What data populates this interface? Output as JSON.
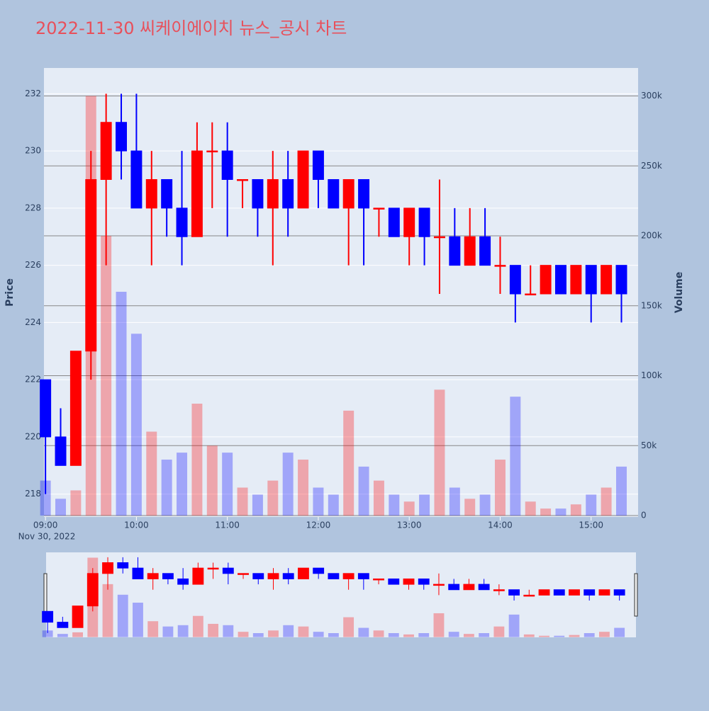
{
  "chart_data": {
    "type": "candlestick",
    "title": "2022-11-30 씨케이에이치 뉴스_공시 차트",
    "y_label": "Price",
    "y2_label": "Volume",
    "x": [
      "09:00",
      "09:10",
      "09:20",
      "09:30",
      "09:40",
      "09:50",
      "10:00",
      "10:10",
      "10:20",
      "10:30",
      "10:40",
      "10:50",
      "11:00",
      "11:10",
      "11:20",
      "11:30",
      "11:40",
      "11:50",
      "12:00",
      "12:10",
      "12:20",
      "12:30",
      "12:40",
      "12:50",
      "13:00",
      "13:10",
      "13:20",
      "13:30",
      "13:40",
      "13:50",
      "14:00",
      "14:10",
      "14:20",
      "14:30",
      "14:40",
      "14:50",
      "15:00",
      "15:10",
      "15:20"
    ],
    "open": [
      222,
      220,
      219,
      223,
      229,
      231,
      230,
      228,
      229,
      228,
      227,
      230,
      230,
      229,
      229,
      228,
      229,
      228,
      230,
      229,
      228,
      229,
      228,
      228,
      227,
      228,
      227,
      227,
      226,
      227,
      226,
      226,
      225,
      225,
      226,
      225,
      226,
      225,
      226
    ],
    "high": [
      222,
      221,
      223,
      230,
      232,
      232,
      232,
      230,
      229,
      230,
      231,
      231,
      231,
      229,
      229,
      230,
      230,
      230,
      230,
      229,
      229,
      229,
      228,
      228,
      228,
      228,
      229,
      228,
      228,
      228,
      227,
      226,
      226,
      226,
      226,
      226,
      226,
      226,
      226
    ],
    "low": [
      218,
      219,
      219,
      222,
      226,
      229,
      228,
      226,
      227,
      226,
      227,
      228,
      227,
      228,
      227,
      226,
      227,
      228,
      228,
      228,
      226,
      226,
      227,
      227,
      226,
      226,
      225,
      226,
      226,
      226,
      225,
      224,
      225,
      225,
      225,
      225,
      224,
      225,
      224
    ],
    "close": [
      220,
      219,
      223,
      229,
      231,
      230,
      228,
      229,
      228,
      227,
      230,
      230,
      229,
      229,
      228,
      229,
      228,
      230,
      229,
      228,
      229,
      228,
      228,
      227,
      228,
      227,
      227,
      226,
      227,
      226,
      226,
      225,
      225,
      226,
      225,
      226,
      225,
      226,
      225
    ],
    "volume": [
      25000,
      12000,
      18000,
      300000,
      200000,
      160000,
      130000,
      60000,
      40000,
      45000,
      80000,
      50000,
      45000,
      20000,
      15000,
      25000,
      45000,
      40000,
      20000,
      15000,
      75000,
      35000,
      25000,
      15000,
      10000,
      15000,
      90000,
      20000,
      12000,
      15000,
      40000,
      85000,
      10000,
      5000,
      5000,
      8000,
      15000,
      20000,
      35000
    ],
    "increasing_color": "#ff0000",
    "decreasing_color": "#0000ff",
    "xlim": [
      "08:59",
      "15:31"
    ],
    "xticks": [
      "09:00",
      "10:00",
      "11:00",
      "12:00",
      "13:00",
      "14:00",
      "15:00"
    ],
    "xtick_date": "Nov 30, 2022",
    "ylim": [
      217.2,
      232.9
    ],
    "yticks": [
      218,
      220,
      222,
      224,
      226,
      228,
      230,
      232
    ],
    "y2lim": [
      -1000,
      320000
    ],
    "y2ticks": [
      0,
      {
        "value": 50000,
        "label": "50k"
      },
      {
        "value": 100000,
        "label": "100k"
      },
      {
        "value": 150000,
        "label": "150k"
      },
      {
        "value": 200000,
        "label": "200k"
      },
      {
        "value": 250000,
        "label": "250k"
      },
      {
        "value": 300000,
        "label": "300k"
      }
    ],
    "grid": true,
    "rangeslider": true
  }
}
